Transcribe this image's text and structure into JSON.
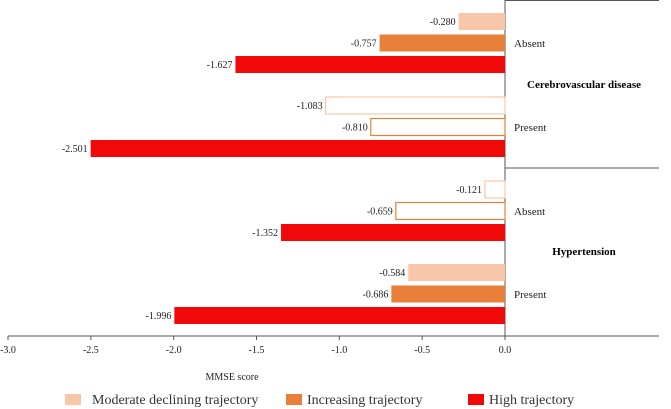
{
  "chart_data": {
    "type": "bar",
    "orientation": "horizontal",
    "xlabel": "MMSE score",
    "xlim": [
      -3.0,
      0.0
    ],
    "x_ticks": [
      "-3.0",
      "-2.5",
      "-2.0",
      "-1.5",
      "-1.0",
      "-0.5",
      "0.0"
    ],
    "series": [
      {
        "name": "Moderate declining trajectory",
        "color": "#f8c7aa"
      },
      {
        "name": "Increasing trajectory",
        "color": "#e8803a"
      },
      {
        "name": "High trajectory",
        "color": "#f20a0a"
      }
    ],
    "panels": [
      {
        "name": "Cerebrovascular disease",
        "groups": [
          {
            "name": "Absent",
            "filled": true,
            "values": [
              -0.28,
              -0.757,
              -1.627
            ],
            "labels": [
              "-0.280",
              "-0.757",
              "-1.627"
            ]
          },
          {
            "name": "Present",
            "filled": false,
            "values": [
              -1.083,
              -0.81,
              -2.501
            ],
            "labels": [
              "-1.083",
              "-0.810",
              "-2.501"
            ]
          }
        ]
      },
      {
        "name": "Hypertension",
        "groups": [
          {
            "name": "Absent",
            "filled": false,
            "values": [
              -0.121,
              -0.659,
              -1.352
            ],
            "labels": [
              "-0.121",
              "-0.659",
              "-1.352"
            ]
          },
          {
            "name": "Present",
            "filled": true,
            "values": [
              -0.584,
              -0.686,
              -1.996
            ],
            "labels": [
              "-0.584",
              "-0.686",
              "-1.996"
            ]
          }
        ]
      }
    ]
  }
}
